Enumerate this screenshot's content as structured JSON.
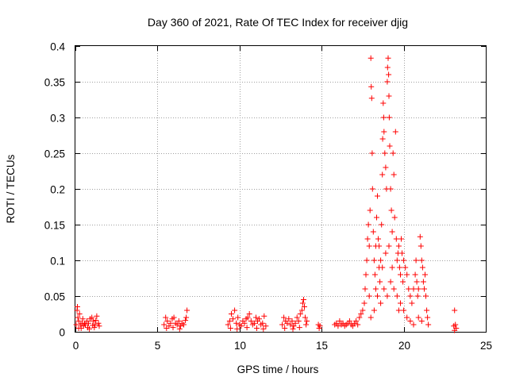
{
  "chart_data": {
    "type": "scatter",
    "title": "Day 360 of 2021, Rate Of TEC Index for receiver djig",
    "xlabel": "GPS time / hours",
    "ylabel": "ROTI / TECUs",
    "xlim": [
      0,
      25
    ],
    "ylim": [
      0,
      0.4
    ],
    "xticks": [
      0,
      5,
      10,
      15,
      20,
      25
    ],
    "xtick_labels": [
      "0",
      "5",
      "10",
      "15",
      "20",
      "25"
    ],
    "yticks": [
      0,
      0.05,
      0.1,
      0.15,
      0.2,
      0.25,
      0.3,
      0.35,
      0.4
    ],
    "ytick_labels": [
      "0",
      "0.05",
      "0.1",
      "0.15",
      "0.2",
      "0.25",
      "0.3",
      "0.35",
      "0.4"
    ],
    "grid": true,
    "marker": "+",
    "marker_color": "#ff0000",
    "series": [
      {
        "name": "ROTI",
        "points": [
          [
            0.05,
            0.01
          ],
          [
            0.1,
            0.03
          ],
          [
            0.12,
            0.035
          ],
          [
            0.15,
            0.02
          ],
          [
            0.2,
            0.015
          ],
          [
            0.25,
            0.025
          ],
          [
            0.3,
            0.01
          ],
          [
            0.35,
            0.005
          ],
          [
            0.4,
            0.012
          ],
          [
            0.5,
            0.008
          ],
          [
            0.6,
            0.01
          ],
          [
            0.7,
            0.015
          ],
          [
            0.8,
            0.012
          ],
          [
            0.9,
            0.018
          ],
          [
            1.0,
            0.02
          ],
          [
            1.1,
            0.015
          ],
          [
            1.2,
            0.01
          ],
          [
            1.3,
            0.022
          ],
          [
            1.4,
            0.012
          ],
          [
            1.45,
            0.008
          ],
          [
            0.2,
            0.005
          ],
          [
            0.55,
            0.012
          ],
          [
            0.75,
            0.006
          ],
          [
            1.05,
            0.009
          ],
          [
            1.25,
            0.016
          ],
          [
            0.45,
            0.018
          ],
          [
            0.85,
            0.004
          ],
          [
            1.15,
            0.006
          ],
          [
            5.4,
            0.01
          ],
          [
            5.5,
            0.02
          ],
          [
            5.6,
            0.015
          ],
          [
            5.7,
            0.008
          ],
          [
            5.8,
            0.012
          ],
          [
            5.9,
            0.018
          ],
          [
            6.0,
            0.02
          ],
          [
            6.1,
            0.012
          ],
          [
            6.2,
            0.01
          ],
          [
            6.3,
            0.015
          ],
          [
            6.4,
            0.008
          ],
          [
            6.5,
            0.012
          ],
          [
            6.6,
            0.01
          ],
          [
            6.7,
            0.016
          ],
          [
            6.8,
            0.03
          ],
          [
            5.55,
            0.005
          ],
          [
            5.95,
            0.006
          ],
          [
            6.35,
            0.004
          ],
          [
            6.75,
            0.02
          ],
          [
            9.3,
            0.01
          ],
          [
            9.4,
            0.015
          ],
          [
            9.5,
            0.025
          ],
          [
            9.6,
            0.018
          ],
          [
            9.7,
            0.03
          ],
          [
            9.8,
            0.012
          ],
          [
            9.9,
            0.02
          ],
          [
            10.0,
            0.01
          ],
          [
            10.1,
            0.008
          ],
          [
            10.2,
            0.015
          ],
          [
            10.3,
            0.012
          ],
          [
            10.4,
            0.018
          ],
          [
            10.5,
            0.02
          ],
          [
            10.6,
            0.025
          ],
          [
            10.7,
            0.015
          ],
          [
            10.8,
            0.01
          ],
          [
            10.9,
            0.012
          ],
          [
            11.0,
            0.02
          ],
          [
            11.1,
            0.015
          ],
          [
            11.2,
            0.018
          ],
          [
            11.3,
            0.01
          ],
          [
            11.4,
            0.012
          ],
          [
            11.5,
            0.022
          ],
          [
            11.6,
            0.008
          ],
          [
            9.45,
            0.005
          ],
          [
            9.85,
            0.004
          ],
          [
            10.45,
            0.006
          ],
          [
            11.05,
            0.005
          ],
          [
            11.45,
            0.004
          ],
          [
            12.6,
            0.01
          ],
          [
            12.7,
            0.02
          ],
          [
            12.8,
            0.015
          ],
          [
            12.9,
            0.012
          ],
          [
            13.0,
            0.018
          ],
          [
            13.1,
            0.01
          ],
          [
            13.2,
            0.015
          ],
          [
            13.3,
            0.008
          ],
          [
            13.4,
            0.012
          ],
          [
            13.5,
            0.02
          ],
          [
            13.6,
            0.015
          ],
          [
            13.7,
            0.025
          ],
          [
            13.8,
            0.03
          ],
          [
            13.85,
            0.04
          ],
          [
            13.9,
            0.045
          ],
          [
            13.95,
            0.035
          ],
          [
            14.0,
            0.02
          ],
          [
            14.1,
            0.015
          ],
          [
            14.05,
            0.01
          ],
          [
            12.75,
            0.005
          ],
          [
            13.25,
            0.004
          ],
          [
            13.65,
            0.006
          ],
          [
            14.8,
            0.01
          ],
          [
            14.85,
            0.005
          ],
          [
            14.9,
            0.008
          ],
          [
            15.8,
            0.01
          ],
          [
            15.9,
            0.012
          ],
          [
            16.0,
            0.008
          ],
          [
            16.1,
            0.015
          ],
          [
            16.2,
            0.01
          ],
          [
            16.3,
            0.012
          ],
          [
            16.4,
            0.008
          ],
          [
            16.5,
            0.01
          ],
          [
            16.6,
            0.012
          ],
          [
            16.7,
            0.015
          ],
          [
            16.8,
            0.01
          ],
          [
            16.9,
            0.008
          ],
          [
            17.0,
            0.012
          ],
          [
            17.1,
            0.015
          ],
          [
            17.2,
            0.01
          ],
          [
            17.3,
            0.02
          ],
          [
            17.4,
            0.025
          ],
          [
            17.5,
            0.03
          ],
          [
            17.6,
            0.04
          ],
          [
            17.65,
            0.06
          ],
          [
            17.7,
            0.08
          ],
          [
            17.75,
            0.1
          ],
          [
            17.8,
            0.13
          ],
          [
            17.85,
            0.15
          ],
          [
            17.9,
            0.12
          ],
          [
            17.95,
            0.17
          ],
          [
            18.0,
            0.383
          ],
          [
            18.02,
            0.343
          ],
          [
            18.05,
            0.327
          ],
          [
            18.08,
            0.25
          ],
          [
            18.1,
            0.2
          ],
          [
            18.15,
            0.14
          ],
          [
            18.2,
            0.1
          ],
          [
            18.25,
            0.08
          ],
          [
            18.3,
            0.12
          ],
          [
            18.35,
            0.16
          ],
          [
            18.4,
            0.19
          ],
          [
            18.45,
            0.13
          ],
          [
            18.5,
            0.09
          ],
          [
            18.55,
            0.07
          ],
          [
            18.6,
            0.1
          ],
          [
            18.65,
            0.15
          ],
          [
            18.7,
            0.22
          ],
          [
            18.72,
            0.27
          ],
          [
            18.75,
            0.32
          ],
          [
            18.78,
            0.3
          ],
          [
            18.8,
            0.28
          ],
          [
            18.85,
            0.25
          ],
          [
            18.9,
            0.23
          ],
          [
            18.95,
            0.2
          ],
          [
            19.0,
            0.35
          ],
          [
            19.02,
            0.37
          ],
          [
            19.05,
            0.383
          ],
          [
            19.08,
            0.36
          ],
          [
            19.1,
            0.33
          ],
          [
            19.12,
            0.3
          ],
          [
            19.15,
            0.26
          ],
          [
            19.2,
            0.2
          ],
          [
            19.25,
            0.17
          ],
          [
            19.3,
            0.14
          ],
          [
            19.35,
            0.25
          ],
          [
            19.4,
            0.22
          ],
          [
            19.45,
            0.16
          ],
          [
            19.5,
            0.28
          ],
          [
            19.55,
            0.13
          ],
          [
            19.6,
            0.1
          ],
          [
            19.65,
            0.11
          ],
          [
            19.7,
            0.12
          ],
          [
            19.75,
            0.09
          ],
          [
            19.8,
            0.08
          ],
          [
            19.85,
            0.13
          ],
          [
            19.9,
            0.11
          ],
          [
            19.95,
            0.07
          ],
          [
            20.0,
            0.1
          ],
          [
            20.1,
            0.09
          ],
          [
            20.2,
            0.08
          ],
          [
            20.3,
            0.06
          ],
          [
            20.4,
            0.05
          ],
          [
            20.5,
            0.04
          ],
          [
            20.6,
            0.06
          ],
          [
            20.7,
            0.08
          ],
          [
            20.75,
            0.1
          ],
          [
            20.8,
            0.07
          ],
          [
            20.85,
            0.05
          ],
          [
            20.9,
            0.06
          ],
          [
            21.0,
            0.133
          ],
          [
            21.05,
            0.12
          ],
          [
            21.1,
            0.1
          ],
          [
            21.15,
            0.09
          ],
          [
            21.2,
            0.07
          ],
          [
            21.25,
            0.06
          ],
          [
            21.3,
            0.08
          ],
          [
            21.35,
            0.05
          ],
          [
            21.4,
            0.03
          ],
          [
            21.45,
            0.02
          ],
          [
            21.5,
            0.01
          ],
          [
            18.0,
            0.02
          ],
          [
            18.2,
            0.03
          ],
          [
            18.4,
            0.05
          ],
          [
            18.6,
            0.04
          ],
          [
            18.8,
            0.06
          ],
          [
            19.0,
            0.05
          ],
          [
            19.2,
            0.07
          ],
          [
            19.4,
            0.06
          ],
          [
            19.6,
            0.05
          ],
          [
            19.8,
            0.04
          ],
          [
            20.0,
            0.03
          ],
          [
            20.2,
            0.02
          ],
          [
            20.4,
            0.015
          ],
          [
            20.6,
            0.01
          ],
          [
            18.9,
            0.11
          ],
          [
            19.1,
            0.12
          ],
          [
            19.3,
            0.09
          ],
          [
            18.7,
            0.09
          ],
          [
            18.5,
            0.12
          ],
          [
            18.3,
            0.06
          ],
          [
            17.9,
            0.05
          ],
          [
            19.7,
            0.03
          ],
          [
            20.9,
            0.02
          ],
          [
            21.1,
            0.015
          ],
          [
            23.1,
            0.03
          ],
          [
            23.15,
            0.01
          ],
          [
            23.2,
            0.005
          ],
          [
            23.05,
            0.008
          ],
          [
            23.1,
            0.002
          ]
        ]
      }
    ]
  }
}
